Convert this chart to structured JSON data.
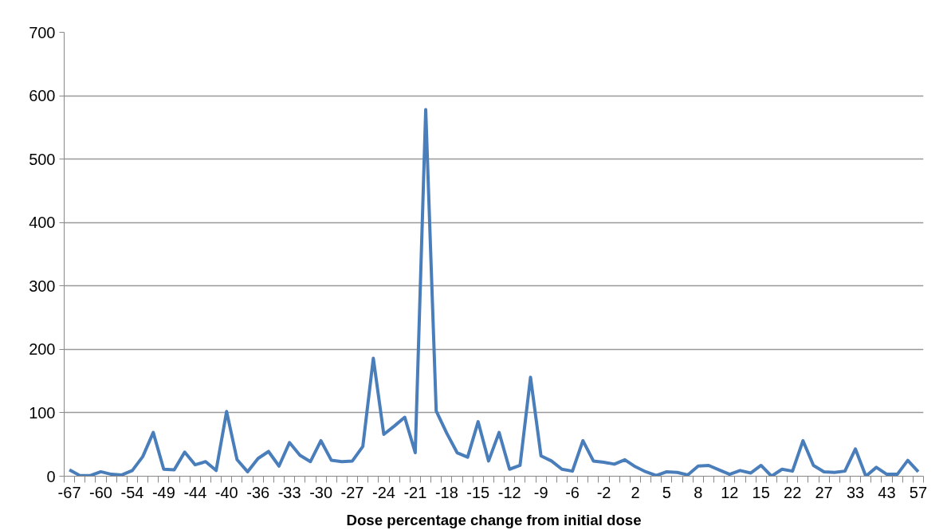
{
  "chart_data": {
    "type": "line",
    "xlabel": "Dose percentage change from initial dose",
    "categories": [
      "-67",
      null,
      null,
      "-60",
      null,
      null,
      "-54",
      null,
      null,
      "-49",
      null,
      null,
      "-44",
      null,
      null,
      "-40",
      null,
      null,
      "-36",
      null,
      null,
      "-33",
      null,
      null,
      "-30",
      null,
      null,
      "-27",
      null,
      null,
      "-24",
      null,
      null,
      "-21",
      null,
      null,
      "-18",
      null,
      null,
      "-15",
      null,
      null,
      "-12",
      null,
      null,
      "-9",
      null,
      null,
      "-6",
      null,
      null,
      "-2",
      null,
      null,
      "2",
      null,
      null,
      "5",
      null,
      null,
      "8",
      null,
      null,
      "12",
      null,
      null,
      "15",
      null,
      null,
      "22",
      null,
      null,
      "27",
      null,
      null,
      "33",
      null,
      null,
      "43",
      null,
      null,
      "57"
    ],
    "series": [
      {
        "color": "#4a7ebb",
        "values": [
          10,
          1,
          1,
          7,
          3,
          2,
          9,
          31,
          69,
          11,
          10,
          38,
          18,
          23,
          9,
          102,
          26,
          7,
          28,
          39,
          16,
          53,
          33,
          23,
          56,
          25,
          23,
          24,
          47,
          186,
          66,
          79,
          93,
          37,
          578,
          103,
          68,
          37,
          30,
          86,
          24,
          69,
          11,
          17,
          156,
          32,
          24,
          11,
          8,
          56,
          24,
          22,
          19,
          26,
          15,
          7,
          1,
          7,
          6,
          2,
          16,
          17,
          10,
          3,
          9,
          5,
          17,
          0,
          11,
          8,
          56,
          17,
          7,
          6,
          8,
          43,
          0,
          14,
          3,
          3,
          25,
          7
        ]
      }
    ],
    "ylim": [
      0,
      700
    ],
    "yticks": [
      0,
      100,
      200,
      300,
      400,
      500,
      600,
      700
    ],
    "grid": "y",
    "marker": "none",
    "line_style": "solid"
  }
}
